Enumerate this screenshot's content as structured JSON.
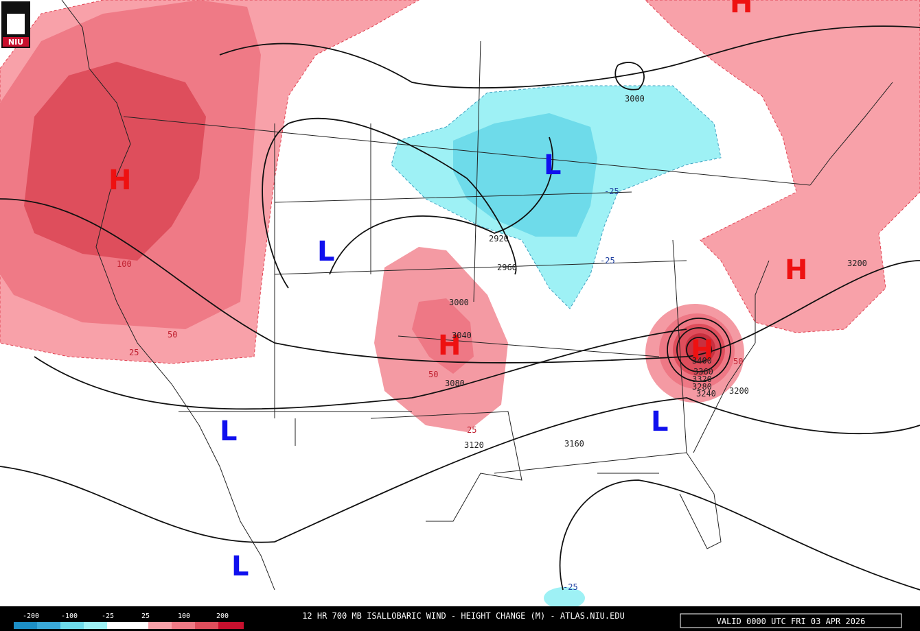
{
  "logo": "NIU",
  "markers": [
    "H",
    "H",
    "H",
    "H",
    "H",
    "L",
    "L",
    "L",
    "L",
    "L"
  ],
  "contour_labels": [
    "3000",
    "2920",
    "2960",
    "3000",
    "3040",
    "3080",
    "3120",
    "3160",
    "3200",
    "3200",
    "3400",
    "3360",
    "3320",
    "3280",
    "3240"
  ],
  "shade_labels": [
    "100",
    "50",
    "25",
    "50",
    "25",
    "-25",
    "-25",
    "-25",
    "50"
  ],
  "legend_labels": [
    "-200",
    "-100",
    "-25",
    "25",
    "100",
    "200"
  ],
  "title": "12 HR 700 MB ISALLOBARIC WIND - HEIGHT CHANGE (M) - ATLAS.NIU.EDU",
  "valid": "VALID 0000 UTC FRI 03 APR 2026"
}
